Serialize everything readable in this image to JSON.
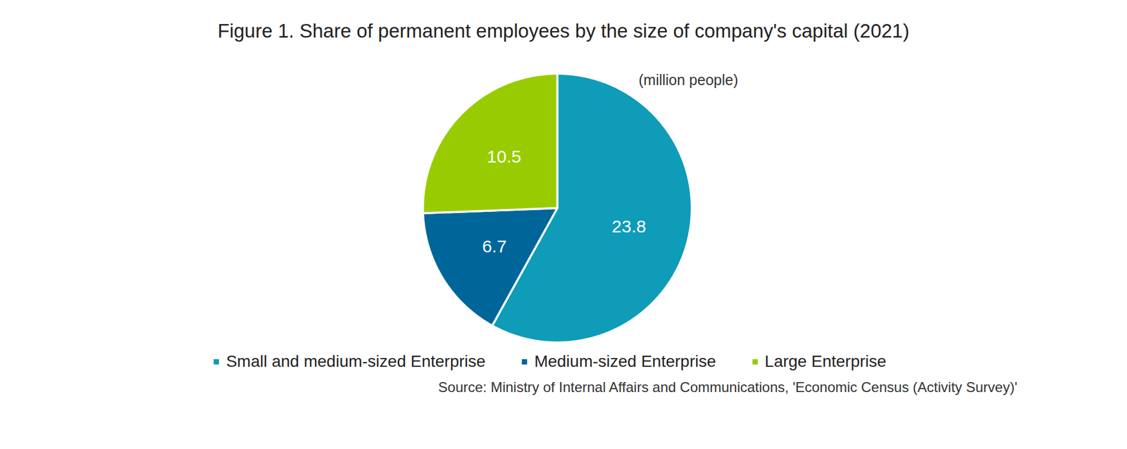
{
  "chart_data": {
    "type": "pie",
    "title": "Figure 1. Share of permanent employees by the size of company's capital (2021)",
    "unit": "(million people)",
    "categories": [
      "Small and medium-sized Enterprise",
      "Medium-sized Enterprise",
      "Large Enterprise"
    ],
    "values": [
      23.8,
      6.7,
      10.5
    ],
    "colors": [
      "#0e9cb8",
      "#006699",
      "#99cc00"
    ],
    "data_labels": true,
    "legend": "bottom",
    "source": "Source: Ministry of Internal Affairs and Communications, 'Economic Census (Activity Survey)'"
  }
}
